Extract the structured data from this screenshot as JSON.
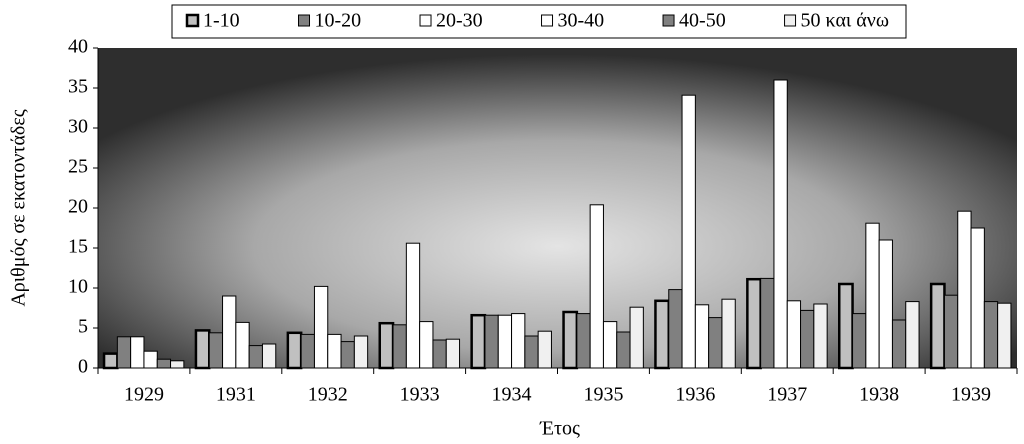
{
  "chart_data": {
    "type": "bar",
    "x_label": "Έτος",
    "y_label": "Αριθμός σε εκατοντάδες",
    "categories": [
      "1929",
      "1931",
      "1932",
      "1933",
      "1934",
      "1935",
      "1936",
      "1937",
      "1938",
      "1939"
    ],
    "series": [
      {
        "name": "1-10",
        "color": "#c0c0c0",
        "values": [
          1.8,
          4.7,
          4.4,
          5.6,
          6.6,
          7.0,
          8.4,
          11.1,
          10.5,
          10.5
        ]
      },
      {
        "name": "10-20",
        "color": "#808080",
        "values": [
          3.9,
          4.4,
          4.2,
          5.4,
          6.6,
          6.8,
          9.8,
          11.2,
          6.8,
          9.1
        ]
      },
      {
        "name": "20-30",
        "color": "#ffffff",
        "values": [
          3.9,
          9.0,
          10.2,
          15.6,
          6.6,
          20.4,
          34.1,
          36.0,
          18.1,
          19.6
        ]
      },
      {
        "name": "30-40",
        "color": "#ffffff",
        "values": [
          2.1,
          5.7,
          4.2,
          5.8,
          6.8,
          5.8,
          7.9,
          8.4,
          16.0,
          17.5
        ]
      },
      {
        "name": "40-50",
        "color": "#808080",
        "values": [
          1.1,
          2.8,
          3.3,
          3.5,
          4.0,
          4.5,
          6.3,
          7.2,
          6.0,
          8.3
        ]
      },
      {
        "name": "50 και άνω",
        "color": "#f0f0f0",
        "values": [
          0.9,
          3.0,
          4.0,
          3.6,
          4.6,
          7.6,
          8.6,
          8.0,
          8.3,
          8.1
        ]
      }
    ],
    "ylim": [
      0,
      40
    ],
    "yticks": [
      0,
      5,
      10,
      15,
      20,
      25,
      30,
      35,
      40
    ],
    "legend": "top"
  }
}
